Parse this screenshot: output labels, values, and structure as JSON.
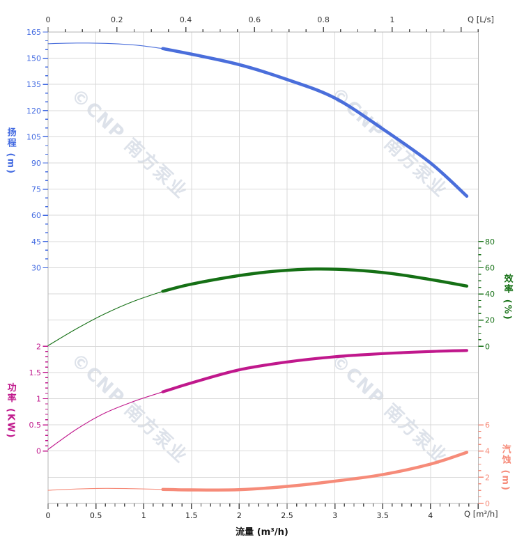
{
  "watermark_text": "©CNP 南方泵业",
  "chart_data": {
    "type": "line",
    "grid": true,
    "x_axis_bottom": {
      "title": "流量 (m³/h)",
      "end_label": "Q [m³/h]",
      "unit": "m³/h",
      "min": 0,
      "max": 4.5,
      "major_step": 0.5,
      "minor_step": 0.1,
      "tick_values": [
        0,
        0.5,
        1,
        1.5,
        2,
        2.5,
        3,
        3.5,
        4
      ],
      "tick_labels": [
        "0",
        "0.5",
        "1",
        "1.5",
        "2",
        "2.5",
        "3",
        "3.5",
        "4"
      ]
    },
    "x_axis_top": {
      "end_label": "Q [L/s]",
      "unit": "L/s",
      "min": 0,
      "max": 1.25,
      "major_step": 0.2,
      "minor_step": 0.05,
      "tick_values": [
        0,
        0.2,
        0.4,
        0.6,
        0.8,
        1
      ],
      "tick_labels": [
        "0",
        "0.2",
        "0.4",
        "0.6",
        "0.8",
        "1"
      ]
    },
    "y_axes": [
      {
        "id": "head",
        "title": "扬程 (m)",
        "side": "left",
        "color": "#4169e1",
        "min": 30,
        "max": 165,
        "major_step": 15,
        "minor_step": 5,
        "tick_values": [
          165,
          150,
          135,
          120,
          105,
          90,
          75,
          60,
          45,
          30
        ],
        "tick_labels": [
          "165",
          "150",
          "135",
          "120",
          "105",
          "90",
          "75",
          "60",
          "45",
          "30"
        ]
      },
      {
        "id": "power",
        "title": "功率 (KW)",
        "side": "left",
        "color": "#c0188c",
        "min": 0,
        "max": 2,
        "major_step": 0.5,
        "minor_step": 0.1,
        "tick_values": [
          2,
          1.5,
          1,
          0.5,
          0
        ],
        "tick_labels": [
          "2",
          "1.5",
          "1",
          "0.5",
          "0"
        ]
      },
      {
        "id": "efficiency",
        "title": "效率 (%)",
        "side": "right",
        "color": "#157015",
        "min": 0,
        "max": 80,
        "major_step": 20,
        "minor_step": 5,
        "tick_values": [
          80,
          60,
          40,
          20,
          0
        ],
        "tick_labels": [
          "80",
          "60",
          "40",
          "20",
          "0"
        ]
      },
      {
        "id": "npsh",
        "title": "汽蚀 (m)",
        "side": "right",
        "color": "#f68b79",
        "min": 0,
        "max": 6,
        "major_step": 2,
        "minor_step": 0.5,
        "tick_values": [
          6,
          4,
          2,
          0
        ],
        "tick_labels": [
          "6",
          "4",
          "2",
          "0"
        ]
      }
    ],
    "rated_range_start_q": 1.2,
    "series": [
      {
        "id": "head-curve",
        "name": "扬程",
        "axis": "head",
        "color": "#4a6edb",
        "points": [
          [
            0,
            158.3
          ],
          [
            0.3,
            158.7
          ],
          [
            0.6,
            158.5
          ],
          [
            0.9,
            157.6
          ],
          [
            1.2,
            155.5
          ],
          [
            1.5,
            152.3
          ],
          [
            2.0,
            146.3
          ],
          [
            2.5,
            137.8
          ],
          [
            3.0,
            127.2
          ],
          [
            3.5,
            109.5
          ],
          [
            4.0,
            90.0
          ],
          [
            4.38,
            71.0
          ]
        ]
      },
      {
        "id": "efficiency-curve",
        "name": "效率",
        "axis": "efficiency",
        "color": "#157015",
        "points": [
          [
            0,
            0.5
          ],
          [
            0.3,
            13.5
          ],
          [
            0.6,
            25
          ],
          [
            0.9,
            34.5
          ],
          [
            1.2,
            42
          ],
          [
            1.5,
            47.5
          ],
          [
            2.0,
            54
          ],
          [
            2.4,
            57.5
          ],
          [
            2.8,
            59
          ],
          [
            3.2,
            58.2
          ],
          [
            3.6,
            55.5
          ],
          [
            4.0,
            51
          ],
          [
            4.38,
            46
          ]
        ]
      },
      {
        "id": "power-curve",
        "name": "功率",
        "axis": "power",
        "color": "#c0188c",
        "points": [
          [
            0,
            0.03
          ],
          [
            0.3,
            0.42
          ],
          [
            0.6,
            0.73
          ],
          [
            0.9,
            0.95
          ],
          [
            1.2,
            1.13
          ],
          [
            1.5,
            1.3
          ],
          [
            2.0,
            1.55
          ],
          [
            2.5,
            1.7
          ],
          [
            3.0,
            1.8
          ],
          [
            3.5,
            1.86
          ],
          [
            4.0,
            1.9
          ],
          [
            4.38,
            1.92
          ]
        ]
      },
      {
        "id": "npsh-curve",
        "name": "汽蚀",
        "axis": "npsh",
        "color": "#f68b79",
        "points": [
          [
            0,
            1.0
          ],
          [
            0.3,
            1.1
          ],
          [
            0.6,
            1.15
          ],
          [
            0.9,
            1.12
          ],
          [
            1.2,
            1.07
          ],
          [
            1.5,
            1.03
          ],
          [
            2.0,
            1.05
          ],
          [
            2.5,
            1.3
          ],
          [
            3.0,
            1.7
          ],
          [
            3.5,
            2.2
          ],
          [
            4.0,
            3.0
          ],
          [
            4.38,
            3.9
          ]
        ]
      }
    ]
  }
}
